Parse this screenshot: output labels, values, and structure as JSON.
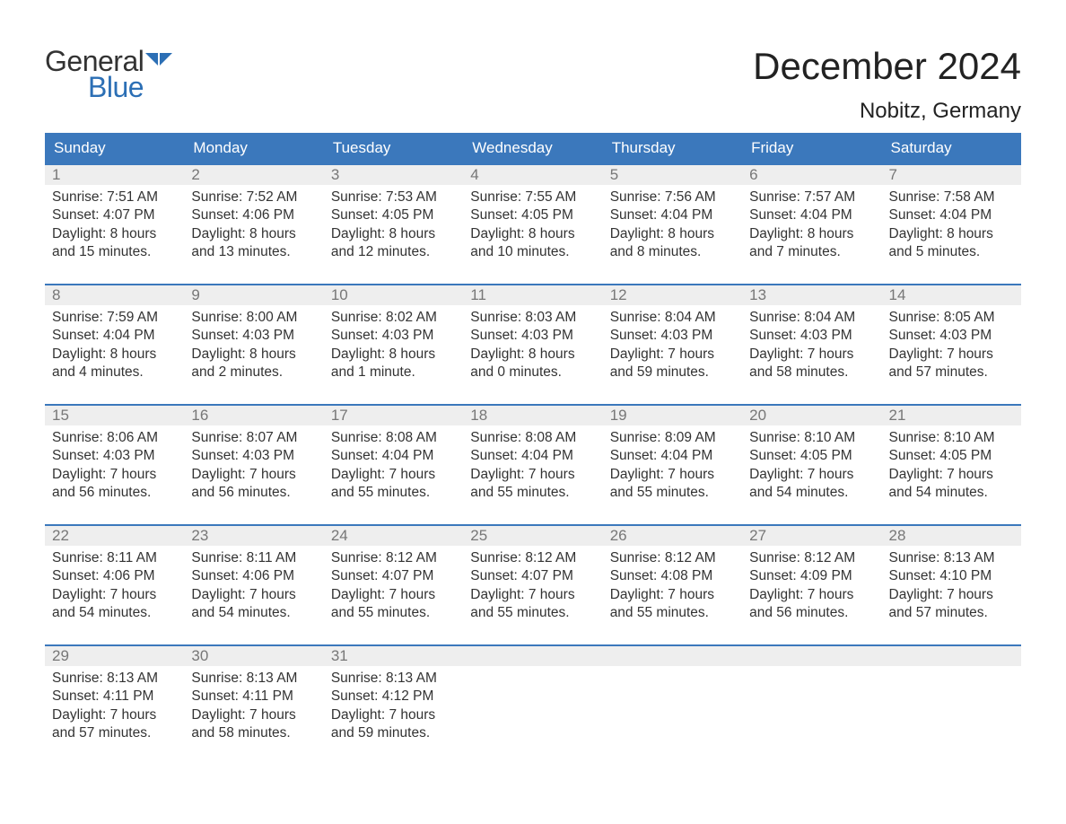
{
  "logo": {
    "text1": "General",
    "text2": "Blue",
    "flag_color": "#2c6fb5",
    "text1_color": "#333333"
  },
  "title": "December 2024",
  "location": "Nobitz, Germany",
  "colors": {
    "header_bg": "#3b78bc",
    "header_text": "#ffffff",
    "week_border": "#3b78bc",
    "daynum_bg": "#eeeeee",
    "daynum_color": "#777777",
    "body_text": "#333333",
    "page_bg": "#ffffff"
  },
  "fonts": {
    "title_size": 42,
    "location_size": 24,
    "weekday_size": 17,
    "daynum_size": 17,
    "body_size": 15.5
  },
  "weekdays": [
    "Sunday",
    "Monday",
    "Tuesday",
    "Wednesday",
    "Thursday",
    "Friday",
    "Saturday"
  ],
  "weeks": [
    [
      {
        "day": "1",
        "sunrise": "7:51 AM",
        "sunset": "4:07 PM",
        "daylight": "8 hours and 15 minutes."
      },
      {
        "day": "2",
        "sunrise": "7:52 AM",
        "sunset": "4:06 PM",
        "daylight": "8 hours and 13 minutes."
      },
      {
        "day": "3",
        "sunrise": "7:53 AM",
        "sunset": "4:05 PM",
        "daylight": "8 hours and 12 minutes."
      },
      {
        "day": "4",
        "sunrise": "7:55 AM",
        "sunset": "4:05 PM",
        "daylight": "8 hours and 10 minutes."
      },
      {
        "day": "5",
        "sunrise": "7:56 AM",
        "sunset": "4:04 PM",
        "daylight": "8 hours and 8 minutes."
      },
      {
        "day": "6",
        "sunrise": "7:57 AM",
        "sunset": "4:04 PM",
        "daylight": "8 hours and 7 minutes."
      },
      {
        "day": "7",
        "sunrise": "7:58 AM",
        "sunset": "4:04 PM",
        "daylight": "8 hours and 5 minutes."
      }
    ],
    [
      {
        "day": "8",
        "sunrise": "7:59 AM",
        "sunset": "4:04 PM",
        "daylight": "8 hours and 4 minutes."
      },
      {
        "day": "9",
        "sunrise": "8:00 AM",
        "sunset": "4:03 PM",
        "daylight": "8 hours and 2 minutes."
      },
      {
        "day": "10",
        "sunrise": "8:02 AM",
        "sunset": "4:03 PM",
        "daylight": "8 hours and 1 minute."
      },
      {
        "day": "11",
        "sunrise": "8:03 AM",
        "sunset": "4:03 PM",
        "daylight": "8 hours and 0 minutes."
      },
      {
        "day": "12",
        "sunrise": "8:04 AM",
        "sunset": "4:03 PM",
        "daylight": "7 hours and 59 minutes."
      },
      {
        "day": "13",
        "sunrise": "8:04 AM",
        "sunset": "4:03 PM",
        "daylight": "7 hours and 58 minutes."
      },
      {
        "day": "14",
        "sunrise": "8:05 AM",
        "sunset": "4:03 PM",
        "daylight": "7 hours and 57 minutes."
      }
    ],
    [
      {
        "day": "15",
        "sunrise": "8:06 AM",
        "sunset": "4:03 PM",
        "daylight": "7 hours and 56 minutes."
      },
      {
        "day": "16",
        "sunrise": "8:07 AM",
        "sunset": "4:03 PM",
        "daylight": "7 hours and 56 minutes."
      },
      {
        "day": "17",
        "sunrise": "8:08 AM",
        "sunset": "4:04 PM",
        "daylight": "7 hours and 55 minutes."
      },
      {
        "day": "18",
        "sunrise": "8:08 AM",
        "sunset": "4:04 PM",
        "daylight": "7 hours and 55 minutes."
      },
      {
        "day": "19",
        "sunrise": "8:09 AM",
        "sunset": "4:04 PM",
        "daylight": "7 hours and 55 minutes."
      },
      {
        "day": "20",
        "sunrise": "8:10 AM",
        "sunset": "4:05 PM",
        "daylight": "7 hours and 54 minutes."
      },
      {
        "day": "21",
        "sunrise": "8:10 AM",
        "sunset": "4:05 PM",
        "daylight": "7 hours and 54 minutes."
      }
    ],
    [
      {
        "day": "22",
        "sunrise": "8:11 AM",
        "sunset": "4:06 PM",
        "daylight": "7 hours and 54 minutes."
      },
      {
        "day": "23",
        "sunrise": "8:11 AM",
        "sunset": "4:06 PM",
        "daylight": "7 hours and 54 minutes."
      },
      {
        "day": "24",
        "sunrise": "8:12 AM",
        "sunset": "4:07 PM",
        "daylight": "7 hours and 55 minutes."
      },
      {
        "day": "25",
        "sunrise": "8:12 AM",
        "sunset": "4:07 PM",
        "daylight": "7 hours and 55 minutes."
      },
      {
        "day": "26",
        "sunrise": "8:12 AM",
        "sunset": "4:08 PM",
        "daylight": "7 hours and 55 minutes."
      },
      {
        "day": "27",
        "sunrise": "8:12 AM",
        "sunset": "4:09 PM",
        "daylight": "7 hours and 56 minutes."
      },
      {
        "day": "28",
        "sunrise": "8:13 AM",
        "sunset": "4:10 PM",
        "daylight": "7 hours and 57 minutes."
      }
    ],
    [
      {
        "day": "29",
        "sunrise": "8:13 AM",
        "sunset": "4:11 PM",
        "daylight": "7 hours and 57 minutes."
      },
      {
        "day": "30",
        "sunrise": "8:13 AM",
        "sunset": "4:11 PM",
        "daylight": "7 hours and 58 minutes."
      },
      {
        "day": "31",
        "sunrise": "8:13 AM",
        "sunset": "4:12 PM",
        "daylight": "7 hours and 59 minutes."
      },
      null,
      null,
      null,
      null
    ]
  ],
  "labels": {
    "sunrise": "Sunrise:",
    "sunset": "Sunset:",
    "daylight": "Daylight:"
  }
}
